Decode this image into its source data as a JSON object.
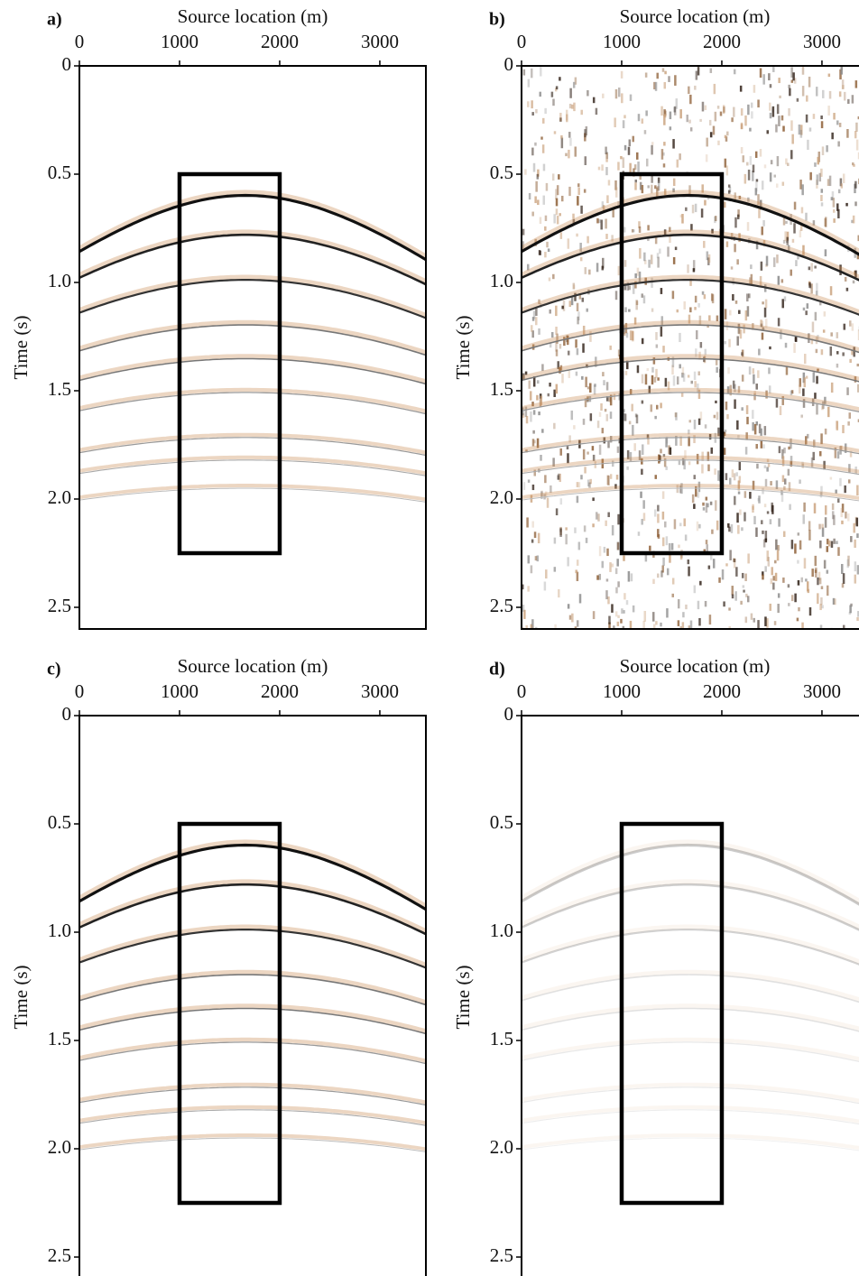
{
  "chart_data": [
    {
      "type": "seismic",
      "panel_label": "a)",
      "xlabel": "Source location (m)",
      "ylabel": "Time (s)",
      "xlim": [
        0,
        3460
      ],
      "ylim": [
        0,
        2.6
      ],
      "xticks": [
        0,
        1000,
        2000,
        3000
      ],
      "yticks": [
        0,
        0.5,
        {
          "value": 1,
          "label": "1.0"
        },
        1.5,
        {
          "value": 2,
          "label": "2.0"
        },
        2.5
      ],
      "box": {
        "x": [
          1000,
          2000
        ],
        "y": [
          0.5,
          2.25
        ]
      }
    },
    {
      "type": "seismic",
      "panel_label": "b)",
      "xlabel": "Source location (m)",
      "ylabel": "Time (s)",
      "xlim": [
        0,
        3460
      ],
      "ylim": [
        0,
        2.6
      ],
      "xticks": [
        0,
        1000,
        2000,
        3000
      ],
      "yticks": [
        0,
        0.5,
        {
          "value": 1,
          "label": "1.0"
        },
        1.5,
        {
          "value": 2,
          "label": "2.0"
        },
        2.5
      ],
      "box": {
        "x": [
          1000,
          2000
        ],
        "y": [
          0.5,
          2.25
        ]
      }
    },
    {
      "type": "seismic",
      "panel_label": "c)",
      "xlabel": "Source location (m)",
      "ylabel": "Time (s)",
      "xlim": [
        0,
        3460
      ],
      "ylim": [
        0,
        2.6
      ],
      "xticks": [
        0,
        1000,
        2000,
        3000
      ],
      "yticks": [
        0,
        0.5,
        {
          "value": 1,
          "label": "1.0"
        },
        1.5,
        {
          "value": 2,
          "label": "2.0"
        },
        2.5
      ],
      "box": {
        "x": [
          1000,
          2000
        ],
        "y": [
          0.5,
          2.25
        ]
      }
    },
    {
      "type": "seismic",
      "panel_label": "d)",
      "xlabel": "Source location (m)",
      "ylabel": "Time (s)",
      "xlim": [
        0,
        3460
      ],
      "ylim": [
        0,
        2.6
      ],
      "xticks": [
        0,
        1000,
        2000,
        3000
      ],
      "yticks": [
        0,
        0.5,
        {
          "value": 1,
          "label": "1.0"
        },
        1.5,
        {
          "value": 2,
          "label": "2.0"
        },
        2.5
      ],
      "box": {
        "x": [
          1000,
          2000
        ],
        "y": [
          0.5,
          2.25
        ]
      }
    }
  ]
}
